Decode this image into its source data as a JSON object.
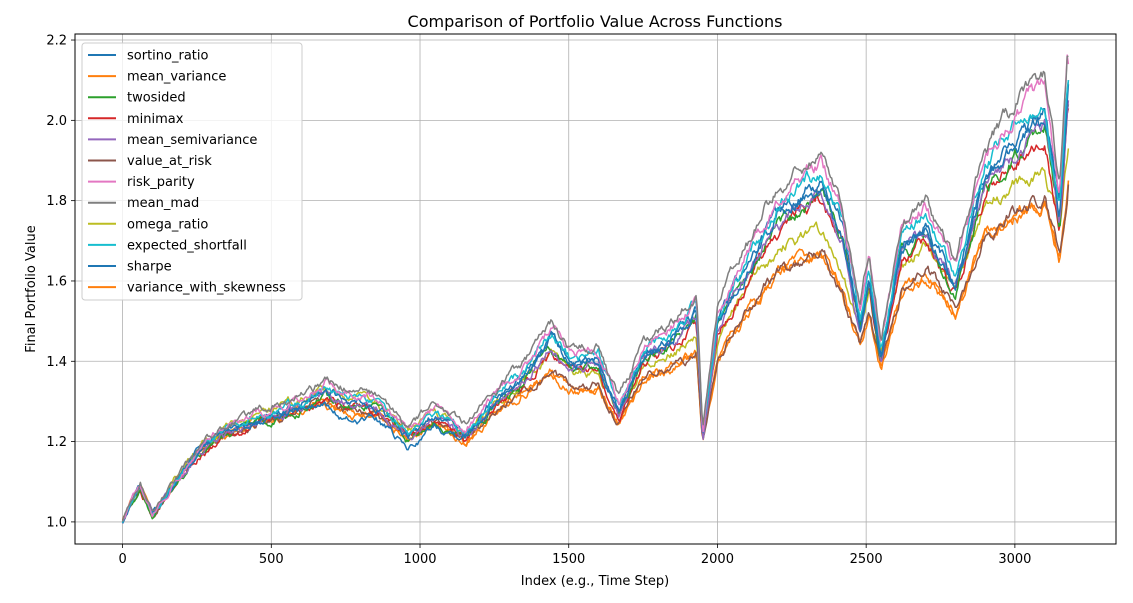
{
  "chart_data": {
    "type": "line",
    "title": "Comparison of Portfolio Value Across Functions",
    "xlabel": "Index (e.g., Time Step)",
    "ylabel": "Final Portfolio Value",
    "xlim": [
      -160,
      3340
    ],
    "ylim": [
      0.945,
      2.215
    ],
    "xticks": [
      0,
      500,
      1000,
      1500,
      2000,
      2500,
      3000
    ],
    "yticks": [
      1.0,
      1.2,
      1.4,
      1.6,
      1.8,
      2.0,
      2.2
    ],
    "xtick_labels": [
      "0",
      "500",
      "1000",
      "1500",
      "2000",
      "2500",
      "3000"
    ],
    "ytick_labels": [
      "1.0",
      "1.2",
      "1.4",
      "1.6",
      "1.8",
      "2.0",
      "2.2"
    ],
    "grid": true,
    "legend_position": "upper-left",
    "x_end": 3180,
    "series": [
      {
        "name": "sortino_ratio",
        "color": "#1f77b4",
        "style": "high",
        "scale": 0.97,
        "end": 2.1,
        "anchors": [
          [
            0,
            1.0
          ],
          [
            30,
            1.05
          ],
          [
            60,
            1.09
          ],
          [
            100,
            1.02
          ],
          [
            180,
            1.1
          ],
          [
            250,
            1.17
          ],
          [
            330,
            1.22
          ],
          [
            400,
            1.24
          ],
          [
            500,
            1.27
          ],
          [
            600,
            1.28
          ],
          [
            680,
            1.29
          ],
          [
            750,
            1.25
          ],
          [
            850,
            1.26
          ],
          [
            960,
            1.18
          ],
          [
            1050,
            1.24
          ],
          [
            1150,
            1.22
          ],
          [
            1250,
            1.3
          ],
          [
            1350,
            1.37
          ],
          [
            1440,
            1.45
          ],
          [
            1500,
            1.39
          ],
          [
            1600,
            1.4
          ],
          [
            1670,
            1.28
          ],
          [
            1750,
            1.41
          ],
          [
            1850,
            1.46
          ],
          [
            1930,
            1.52
          ],
          [
            1950,
            1.21
          ],
          [
            2000,
            1.49
          ],
          [
            2100,
            1.63
          ],
          [
            2200,
            1.76
          ],
          [
            2300,
            1.82
          ],
          [
            2350,
            1.84
          ],
          [
            2420,
            1.72
          ],
          [
            2480,
            1.48
          ],
          [
            2510,
            1.6
          ],
          [
            2550,
            1.41
          ],
          [
            2620,
            1.68
          ],
          [
            2700,
            1.73
          ],
          [
            2800,
            1.58
          ],
          [
            2900,
            1.85
          ],
          [
            3000,
            1.93
          ],
          [
            3100,
            2.0
          ],
          [
            3150,
            1.78
          ],
          [
            3180,
            2.1
          ]
        ]
      },
      {
        "name": "mean_variance",
        "color": "#ff7f0e",
        "style": "low",
        "scale": 0.75,
        "end": 1.85
      },
      {
        "name": "twosided",
        "color": "#2ca02c",
        "style": "high",
        "scale": 0.92,
        "end": 2.04
      },
      {
        "name": "minimax",
        "color": "#d62728",
        "style": "high",
        "scale": 0.91,
        "end": 2.03
      },
      {
        "name": "mean_semivariance",
        "color": "#9467bd",
        "style": "high",
        "scale": 0.93,
        "end": 2.05
      },
      {
        "name": "value_at_risk",
        "color": "#8c564b",
        "style": "low",
        "scale": 0.76,
        "end": 1.84
      },
      {
        "name": "risk_parity",
        "color": "#e377c2",
        "style": "high",
        "scale": 1.02,
        "end": 2.14
      },
      {
        "name": "mean_mad",
        "color": "#7f7f7f",
        "style": "high",
        "scale": 1.04,
        "end": 2.16
      },
      {
        "name": "omega_ratio",
        "color": "#bcbd22",
        "style": "low",
        "scale": 0.83,
        "end": 1.93
      },
      {
        "name": "expected_shortfall",
        "color": "#17becf",
        "style": "high",
        "scale": 0.99,
        "end": 2.1
      },
      {
        "name": "sharpe",
        "color": "#1f77b4",
        "style": "high",
        "scale": 0.96,
        "end": 2.09
      },
      {
        "name": "variance_with_skewness",
        "color": "#ff7f0e",
        "style": "low",
        "scale": 0.75,
        "end": 1.85
      }
    ],
    "base_path": [
      [
        0,
        1.0
      ],
      [
        30,
        1.05
      ],
      [
        60,
        1.09
      ],
      [
        100,
        1.02
      ],
      [
        180,
        1.1
      ],
      [
        250,
        1.17
      ],
      [
        330,
        1.22
      ],
      [
        400,
        1.24
      ],
      [
        500,
        1.27
      ],
      [
        600,
        1.29
      ],
      [
        680,
        1.33
      ],
      [
        750,
        1.31
      ],
      [
        850,
        1.3
      ],
      [
        960,
        1.22
      ],
      [
        1050,
        1.27
      ],
      [
        1150,
        1.22
      ],
      [
        1250,
        1.3
      ],
      [
        1350,
        1.37
      ],
      [
        1440,
        1.46
      ],
      [
        1500,
        1.4
      ],
      [
        1600,
        1.41
      ],
      [
        1670,
        1.28
      ],
      [
        1750,
        1.42
      ],
      [
        1850,
        1.47
      ],
      [
        1930,
        1.53
      ],
      [
        1950,
        1.21
      ],
      [
        2000,
        1.5
      ],
      [
        2100,
        1.64
      ],
      [
        2200,
        1.77
      ],
      [
        2300,
        1.84
      ],
      [
        2350,
        1.86
      ],
      [
        2420,
        1.74
      ],
      [
        2480,
        1.5
      ],
      [
        2510,
        1.62
      ],
      [
        2550,
        1.42
      ],
      [
        2620,
        1.7
      ],
      [
        2700,
        1.75
      ],
      [
        2800,
        1.6
      ],
      [
        2900,
        1.87
      ],
      [
        3000,
        1.96
      ],
      [
        3100,
        2.04
      ],
      [
        3150,
        1.78
      ],
      [
        3180,
        2.12
      ]
    ],
    "low_path": [
      [
        0,
        1.0
      ],
      [
        30,
        1.05
      ],
      [
        60,
        1.09
      ],
      [
        100,
        1.02
      ],
      [
        180,
        1.1
      ],
      [
        250,
        1.17
      ],
      [
        330,
        1.21
      ],
      [
        400,
        1.23
      ],
      [
        500,
        1.26
      ],
      [
        600,
        1.28
      ],
      [
        680,
        1.3
      ],
      [
        750,
        1.28
      ],
      [
        850,
        1.27
      ],
      [
        960,
        1.21
      ],
      [
        1050,
        1.25
      ],
      [
        1150,
        1.2
      ],
      [
        1250,
        1.27
      ],
      [
        1350,
        1.33
      ],
      [
        1440,
        1.38
      ],
      [
        1500,
        1.34
      ],
      [
        1600,
        1.34
      ],
      [
        1670,
        1.25
      ],
      [
        1750,
        1.36
      ],
      [
        1850,
        1.39
      ],
      [
        1930,
        1.42
      ],
      [
        1950,
        1.2
      ],
      [
        2000,
        1.41
      ],
      [
        2100,
        1.53
      ],
      [
        2200,
        1.62
      ],
      [
        2300,
        1.66
      ],
      [
        2350,
        1.67
      ],
      [
        2420,
        1.58
      ],
      [
        2480,
        1.43
      ],
      [
        2510,
        1.52
      ],
      [
        2550,
        1.39
      ],
      [
        2620,
        1.58
      ],
      [
        2700,
        1.63
      ],
      [
        2800,
        1.53
      ],
      [
        2900,
        1.72
      ],
      [
        3000,
        1.77
      ],
      [
        3100,
        1.81
      ],
      [
        3150,
        1.66
      ],
      [
        3180,
        1.85
      ]
    ]
  }
}
